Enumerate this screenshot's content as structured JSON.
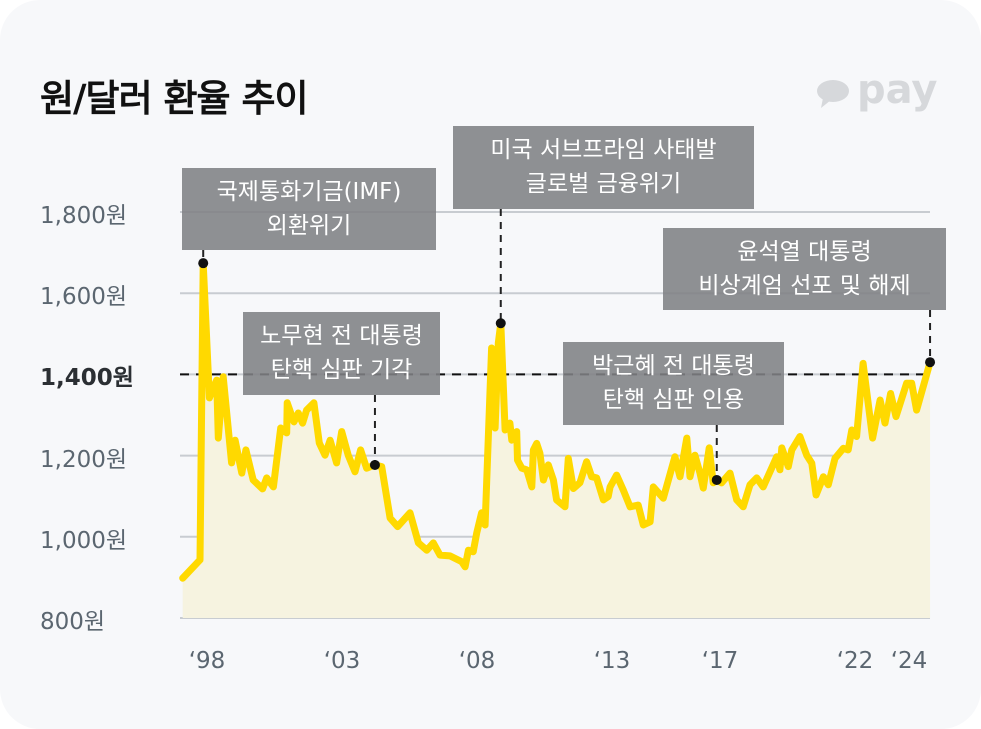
{
  "title": "원/달러 환율 추이",
  "logo": {
    "text": "pay",
    "icon": "speech-bubble-icon",
    "color": "#d6d8db"
  },
  "colors": {
    "line": "#ffd900",
    "fill": "#f6f3e0",
    "grid": "#c8ccd1",
    "annotation_bg": "#808184",
    "reference_line": "#111111"
  },
  "chart_data": {
    "type": "line",
    "title": "원/달러 환율 추이",
    "xlabel": "",
    "ylabel": "",
    "xlim": [
      1997,
      2024.9
    ],
    "ylim": [
      800,
      1800
    ],
    "grid": true,
    "y_ticks": [
      {
        "value": 1800,
        "label": "1,800원"
      },
      {
        "value": 1600,
        "label": "1,600원"
      },
      {
        "value": 1400,
        "label": "1,400원",
        "emphasis": true
      },
      {
        "value": 1200,
        "label": "1,200원"
      },
      {
        "value": 1000,
        "label": "1,000원"
      },
      {
        "value": 800,
        "label": "800원"
      }
    ],
    "x_ticks": [
      {
        "value": 1998,
        "label": "‘98"
      },
      {
        "value": 2003,
        "label": "‘03"
      },
      {
        "value": 2008,
        "label": "‘08"
      },
      {
        "value": 2013,
        "label": "‘13"
      },
      {
        "value": 2017,
        "label": "‘17"
      },
      {
        "value": 2022,
        "label": "‘22"
      },
      {
        "value": 2024,
        "label": "‘24"
      }
    ],
    "reference_line": {
      "value": 1400,
      "style": "dashed"
    },
    "series": [
      {
        "name": "원/달러 환율",
        "points": [
          [
            1997.1,
            898
          ],
          [
            1997.74,
            943
          ],
          [
            1997.86,
            1674
          ],
          [
            1998.09,
            1342
          ],
          [
            1998.36,
            1386
          ],
          [
            1998.42,
            1243
          ],
          [
            1998.6,
            1394
          ],
          [
            1998.91,
            1182
          ],
          [
            1999.04,
            1238
          ],
          [
            1999.29,
            1157
          ],
          [
            1999.44,
            1214
          ],
          [
            1999.71,
            1140
          ],
          [
            2000.06,
            1118
          ],
          [
            2000.21,
            1145
          ],
          [
            2000.46,
            1123
          ],
          [
            2000.73,
            1268
          ],
          [
            2000.95,
            1256
          ],
          [
            2000.97,
            1330
          ],
          [
            2001.22,
            1283
          ],
          [
            2001.38,
            1305
          ],
          [
            2001.54,
            1280
          ],
          [
            2001.69,
            1312
          ],
          [
            2001.96,
            1330
          ],
          [
            2002.16,
            1231
          ],
          [
            2002.37,
            1201
          ],
          [
            2002.56,
            1238
          ],
          [
            2002.8,
            1182
          ],
          [
            2002.99,
            1259
          ],
          [
            2003.23,
            1201
          ],
          [
            2003.48,
            1160
          ],
          [
            2003.69,
            1214
          ],
          [
            2003.91,
            1169
          ],
          [
            2004.22,
            1177
          ],
          [
            2004.47,
            1173
          ],
          [
            2004.78,
            1046
          ],
          [
            2005.06,
            1025
          ],
          [
            2005.52,
            1059
          ],
          [
            2005.83,
            985
          ],
          [
            2006.14,
            967
          ],
          [
            2006.38,
            985
          ],
          [
            2006.63,
            955
          ],
          [
            2007.0,
            953
          ],
          [
            2007.43,
            939
          ],
          [
            2007.56,
            926
          ],
          [
            2007.68,
            967
          ],
          [
            2007.86,
            963
          ],
          [
            2007.99,
            1009
          ],
          [
            2008.17,
            1059
          ],
          [
            2008.3,
            1029
          ],
          [
            2008.54,
            1465
          ],
          [
            2008.67,
            1268
          ],
          [
            2008.79,
            1477
          ],
          [
            2008.88,
            1526
          ],
          [
            2009.04,
            1263
          ],
          [
            2009.22,
            1280
          ],
          [
            2009.29,
            1238
          ],
          [
            2009.47,
            1259
          ],
          [
            2009.5,
            1189
          ],
          [
            2009.66,
            1169
          ],
          [
            2009.84,
            1165
          ],
          [
            2010.03,
            1123
          ],
          [
            2010.09,
            1214
          ],
          [
            2010.21,
            1230
          ],
          [
            2010.33,
            1206
          ],
          [
            2010.46,
            1140
          ],
          [
            2010.64,
            1177
          ],
          [
            2010.83,
            1140
          ],
          [
            2010.95,
            1091
          ],
          [
            2011.26,
            1074
          ],
          [
            2011.38,
            1193
          ],
          [
            2011.57,
            1119
          ],
          [
            2011.81,
            1133
          ],
          [
            2012.06,
            1185
          ],
          [
            2012.25,
            1148
          ],
          [
            2012.43,
            1145
          ],
          [
            2012.68,
            1091
          ],
          [
            2012.86,
            1099
          ],
          [
            2012.93,
            1123
          ],
          [
            2013.17,
            1152
          ],
          [
            2013.42,
            1115
          ],
          [
            2013.67,
            1074
          ],
          [
            2013.97,
            1078
          ],
          [
            2014.16,
            1029
          ],
          [
            2014.41,
            1037
          ],
          [
            2014.53,
            1123
          ],
          [
            2014.9,
            1095
          ],
          [
            2015.33,
            1197
          ],
          [
            2015.52,
            1148
          ],
          [
            2015.77,
            1243
          ],
          [
            2015.89,
            1148
          ],
          [
            2016.07,
            1201
          ],
          [
            2016.26,
            1157
          ],
          [
            2016.38,
            1120
          ],
          [
            2016.6,
            1219
          ],
          [
            2016.75,
            1133
          ],
          [
            2016.88,
            1140
          ],
          [
            2017.06,
            1133
          ],
          [
            2017.37,
            1157
          ],
          [
            2017.62,
            1091
          ],
          [
            2017.86,
            1074
          ],
          [
            2018.11,
            1128
          ],
          [
            2018.36,
            1145
          ],
          [
            2018.6,
            1123
          ],
          [
            2019.1,
            1197
          ],
          [
            2019.22,
            1165
          ],
          [
            2019.29,
            1219
          ],
          [
            2019.53,
            1173
          ],
          [
            2019.66,
            1214
          ],
          [
            2019.96,
            1247
          ],
          [
            2020.21,
            1201
          ],
          [
            2020.4,
            1181
          ],
          [
            2020.56,
            1103
          ],
          [
            2020.83,
            1148
          ],
          [
            2021.01,
            1128
          ],
          [
            2021.26,
            1193
          ],
          [
            2021.57,
            1218
          ],
          [
            2021.75,
            1214
          ],
          [
            2021.88,
            1263
          ],
          [
            2022.06,
            1247
          ],
          [
            2022.3,
            1427
          ],
          [
            2022.65,
            1243
          ],
          [
            2022.93,
            1337
          ],
          [
            2023.11,
            1280
          ],
          [
            2023.32,
            1353
          ],
          [
            2023.52,
            1296
          ],
          [
            2023.91,
            1378
          ],
          [
            2024.1,
            1378
          ],
          [
            2024.28,
            1312
          ],
          [
            2024.78,
            1430
          ]
        ]
      }
    ],
    "annotations": [
      {
        "lines": [
          "국제통화기금(IMF)",
          "외환위기"
        ],
        "point": [
          1997.86,
          1674
        ]
      },
      {
        "lines": [
          "노무현 전 대통령",
          "탄핵 심판 기각"
        ],
        "point": [
          2004.22,
          1177
        ]
      },
      {
        "lines": [
          "미국 서브프라임 사태발",
          "글로벌 금융위기"
        ],
        "point": [
          2008.88,
          1526
        ]
      },
      {
        "lines": [
          "박근혜 전 대통령",
          "탄핵 심판 인용"
        ],
        "point": [
          2016.88,
          1140
        ]
      },
      {
        "lines": [
          "윤석열 대통령",
          "비상계엄 선포 및 해제"
        ],
        "point": [
          2024.78,
          1430
        ]
      }
    ]
  }
}
